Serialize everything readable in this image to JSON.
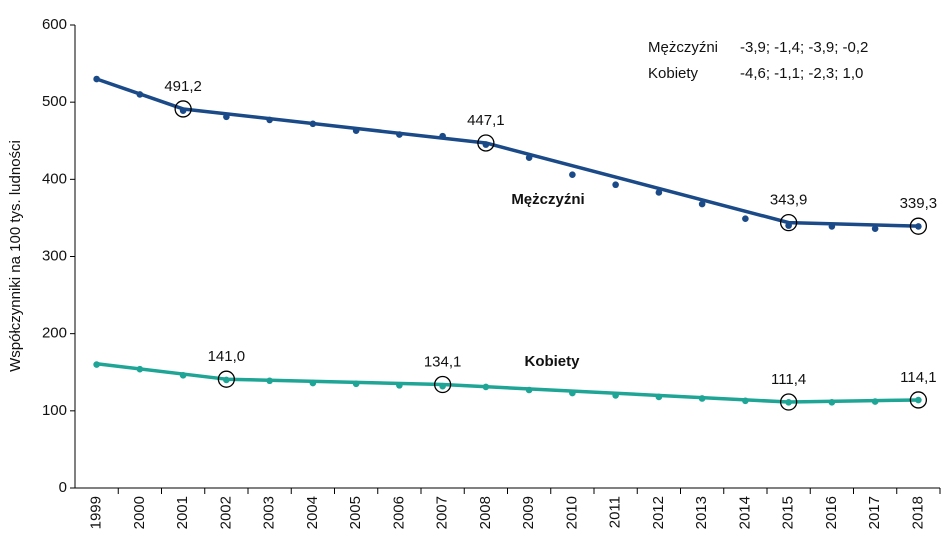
{
  "chart_data": {
    "type": "line",
    "y_label": "Współczynniki na 100 tys. ludności",
    "categories": [
      "1999",
      "2000",
      "2001",
      "2002",
      "2003",
      "2004",
      "2005",
      "2006",
      "2007",
      "2008",
      "2009",
      "2010",
      "2011",
      "2012",
      "2013",
      "2014",
      "2015",
      "2016",
      "2017",
      "2018"
    ],
    "ylim": [
      0,
      600
    ],
    "yticks": [
      0,
      100,
      200,
      300,
      400,
      500,
      600
    ],
    "series": [
      {
        "name": "Mężczyźni",
        "color": "#1b4a88",
        "values": [
          530,
          510,
          489,
          481,
          477,
          472,
          463,
          458,
          456,
          445,
          428,
          406,
          393,
          383,
          368,
          349,
          340,
          339,
          336,
          339
        ],
        "trend_start": 530,
        "joinpoints": [
          {
            "x": "2001",
            "value": 491.2,
            "label": "491,2"
          },
          {
            "x": "2008",
            "value": 447.1,
            "label": "447,1"
          },
          {
            "x": "2015",
            "value": 343.9,
            "label": "343,9"
          },
          {
            "x": "2018",
            "value": 339.3,
            "label": "339,3"
          }
        ]
      },
      {
        "name": "Kobiety",
        "color": "#1ea596",
        "values": [
          160,
          154,
          146,
          140,
          139,
          136,
          135,
          133,
          132,
          131,
          127,
          123,
          120,
          118,
          116,
          113,
          111,
          111,
          112,
          114
        ],
        "trend_start": 161,
        "joinpoints": [
          {
            "x": "2002",
            "value": 141.0,
            "label": "141,0"
          },
          {
            "x": "2007",
            "value": 134.1,
            "label": "134,1"
          },
          {
            "x": "2015",
            "value": 111.4,
            "label": "111,4"
          },
          {
            "x": "2018",
            "value": 114.1,
            "label": "114,1"
          }
        ]
      }
    ],
    "annotations": [
      {
        "name": "Mężczyźni",
        "text": "-3,9; -1,4; -3,9; -0,2"
      },
      {
        "name": "Kobiety",
        "text": "-4,6; -1,1; -2,3; 1,0"
      }
    ]
  }
}
